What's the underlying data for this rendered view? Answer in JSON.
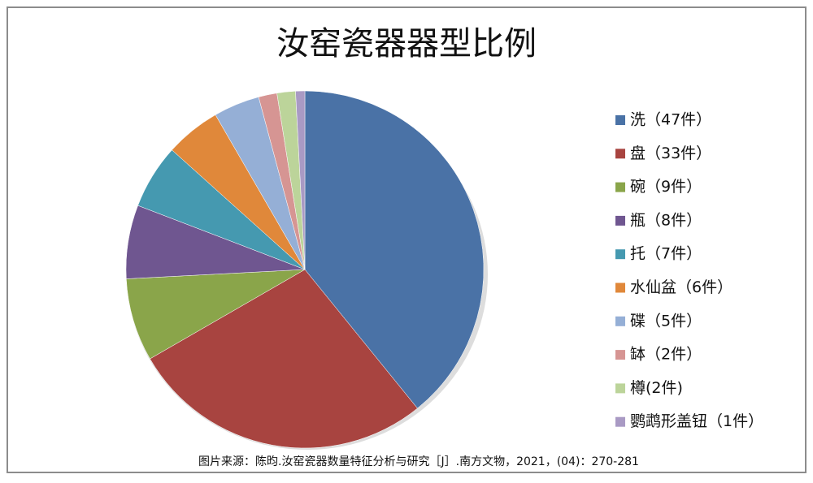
{
  "chart_data": {
    "type": "pie",
    "title": "汝窑瓷器器型比例",
    "categories": [
      "洗（47件）",
      "盘（33件）",
      "碗（9件）",
      "瓶（8件）",
      "托（7件）",
      "水仙盆（6件）",
      "碟（5件）",
      "缽（2件）",
      "樽(2件)",
      "鹦鹉形盖钮（1件）"
    ],
    "values": [
      47,
      33,
      9,
      8,
      7,
      6,
      5,
      2,
      2,
      1
    ],
    "colors": [
      "#4a72a6",
      "#a84440",
      "#8aa54a",
      "#6f5690",
      "#4599b0",
      "#e0883a",
      "#95afd6",
      "#d69593",
      "#bcd49a",
      "#a99ac4"
    ],
    "legend": "right",
    "source": "图片来源：陈昀.汝窑瓷器数量特征分析与研究［J］.南方文物，2021，(04)：270-281"
  }
}
